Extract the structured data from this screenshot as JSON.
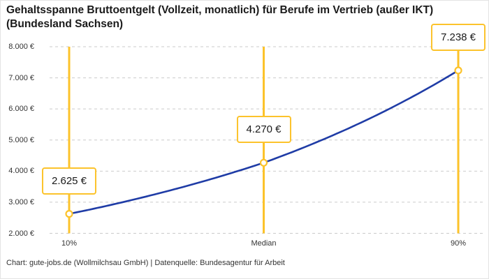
{
  "chart": {
    "title": "Gehaltsspanne Bruttoentgelt (Vollzeit, monatlich) für Berufe im Vertrieb (außer IKT) (Bundesland Sachsen)",
    "attribution": "Chart: gute-jobs.de (Wollmilchsau GmbH) | Datenquelle: Bundesagentur für Arbeit"
  },
  "chart_data": {
    "type": "line",
    "title": "Gehaltsspanne Bruttoentgelt (Vollzeit, monatlich) für Berufe im Vertrieb (außer IKT) (Bundesland Sachsen)",
    "categories": [
      "10%",
      "Median",
      "90%"
    ],
    "values": [
      2625,
      4270,
      7238
    ],
    "points": [
      {
        "category": "10%",
        "value": 2625,
        "label": "2.625 €"
      },
      {
        "category": "Median",
        "value": 4270,
        "label": "4.270 €"
      },
      {
        "category": "90%",
        "value": 7238,
        "label": "7.238 €"
      }
    ],
    "y_ticks": [
      8000,
      7000,
      6000,
      5000,
      4000,
      3000,
      2000
    ],
    "y_tick_labels": [
      "8.000 €",
      "7.000 €",
      "6.000 €",
      "5.000 €",
      "4.000 €",
      "3.000 €",
      "2.000 €"
    ],
    "xlabel": "",
    "ylabel": "",
    "ylim": [
      2000,
      8000
    ],
    "grid": "horizontal-dashed",
    "interpolation": "log-linear",
    "legend": "none",
    "colors": {
      "accent_yellow": "#fcc32b",
      "line_blue": "#1f3ca6",
      "grid_gray": "#cbcbcb",
      "text_dark": "#1a1a1a",
      "text_axis": "#333333"
    }
  }
}
